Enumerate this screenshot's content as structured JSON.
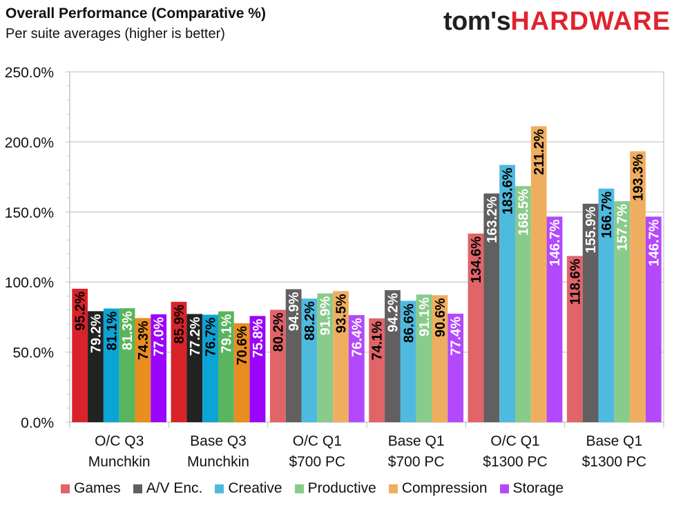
{
  "header": {
    "title": "Overall Performance (Comparative %)",
    "subtitle": "Per suite averages (higher is better)"
  },
  "logo": {
    "part1": "tom's",
    "part2": "HARDWARE"
  },
  "chart_data": {
    "type": "bar",
    "title": "Overall Performance (Comparative %)",
    "subtitle": "Per suite averages (higher is better)",
    "xlabel": "",
    "ylabel": "",
    "ylim": [
      0,
      250
    ],
    "y_ticks": [
      0,
      50,
      100,
      150,
      200,
      250
    ],
    "y_tick_labels": [
      "0.0%",
      "50.0%",
      "100.0%",
      "150.0%",
      "200.0%",
      "250.0%"
    ],
    "grid": true,
    "legend_position": "bottom",
    "categories": [
      [
        "O/C Q3",
        "Munchkin"
      ],
      [
        "Base Q3",
        "Munchkin"
      ],
      [
        "O/C Q1",
        "$700 PC"
      ],
      [
        "Base Q1",
        "$700 PC"
      ],
      [
        "O/C Q1",
        "$1300 PC"
      ],
      [
        "Base Q1",
        "$1300 PC"
      ]
    ],
    "series": [
      {
        "name": "Games",
        "values": [
          95.2,
          85.9,
          80.2,
          74.1,
          134.6,
          118.6
        ],
        "labels": [
          "95.2%",
          "85.9%",
          "80.2%",
          "74.1%",
          "134.6%",
          "118.6%"
        ]
      },
      {
        "name": "A/V Enc.",
        "values": [
          79.2,
          77.2,
          94.9,
          94.2,
          163.2,
          155.9
        ],
        "labels": [
          "79.2%",
          "77.2%",
          "94.9%",
          "94.2%",
          "163.2%",
          "155.9%"
        ]
      },
      {
        "name": "Creative",
        "values": [
          81.1,
          76.7,
          88.2,
          86.6,
          183.6,
          166.7
        ],
        "labels": [
          "81.1%",
          "76.7%",
          "88.2%",
          "86.6%",
          "183.6%",
          "166.7%"
        ]
      },
      {
        "name": "Productive",
        "values": [
          81.3,
          79.1,
          91.9,
          91.1,
          168.5,
          157.7
        ],
        "labels": [
          "81.3%",
          "79.1%",
          "91.9%",
          "91.1%",
          "168.5%",
          "157.7%"
        ]
      },
      {
        "name": "Compression",
        "values": [
          74.3,
          70.6,
          93.5,
          90.6,
          211.2,
          193.3
        ],
        "labels": [
          "74.3%",
          "70.6%",
          "93.5%",
          "90.6%",
          "211.2%",
          "193.3%"
        ]
      },
      {
        "name": "Storage",
        "values": [
          77.0,
          75.8,
          76.4,
          77.4,
          146.7,
          146.7
        ],
        "labels": [
          "77.0%",
          "75.8%",
          "76.4%",
          "77.4%",
          "146.7%",
          "146.7%"
        ]
      }
    ],
    "colors_saturated": [
      "#d9232a",
      "#222222",
      "#0ca4d4",
      "#58b55d",
      "#e88d1f",
      "#9b05fb"
    ],
    "colors_light": [
      "#e06468",
      "#615f60",
      "#4fbadf",
      "#89cb8b",
      "#efae5f",
      "#b349fc"
    ],
    "label_colors_saturated": [
      "#000000",
      "#ffffff",
      "#000000",
      "#ffffff",
      "#000000",
      "#ffffff"
    ],
    "label_colors_light": [
      "#000000",
      "#ffffff",
      "#000000",
      "#ffffff",
      "#000000",
      "#ffffff"
    ],
    "saturated_groups": [
      0,
      1
    ]
  },
  "legend": [
    {
      "label": "Games",
      "color": "#e06468"
    },
    {
      "label": "A/V Enc.",
      "color": "#615f60"
    },
    {
      "label": "Creative",
      "color": "#4fbadf"
    },
    {
      "label": "Productive",
      "color": "#89cb8b"
    },
    {
      "label": "Compression",
      "color": "#efae5f"
    },
    {
      "label": "Storage",
      "color": "#b349fc"
    }
  ]
}
